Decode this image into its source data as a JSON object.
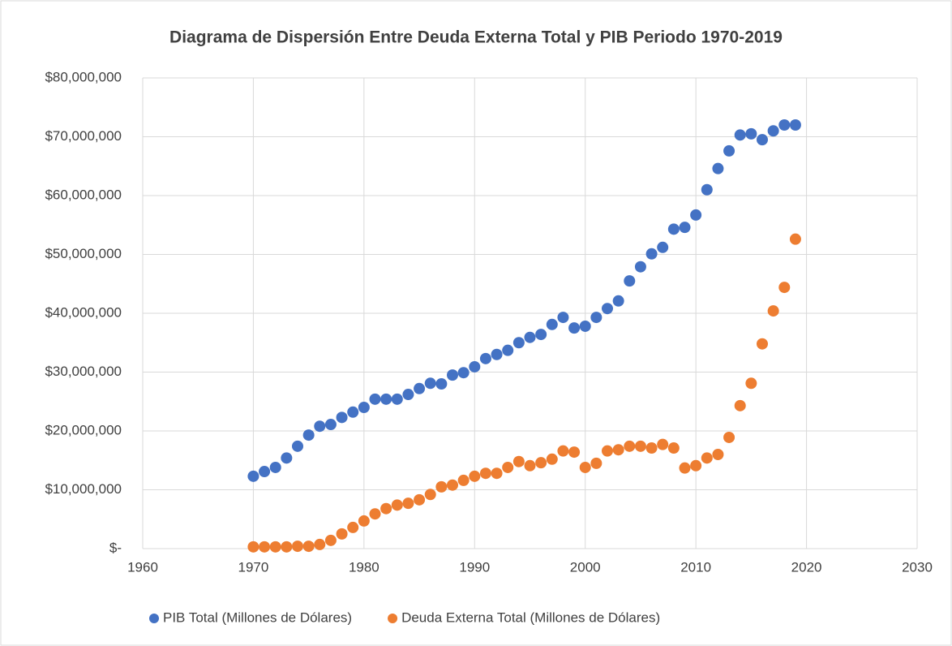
{
  "chart_data": {
    "type": "scatter",
    "title": "Diagrama de Dispersión Entre Deuda Externa Total y PIB Periodo 1970-2019",
    "x": [
      1970,
      1971,
      1972,
      1973,
      1974,
      1975,
      1976,
      1977,
      1978,
      1979,
      1980,
      1981,
      1982,
      1983,
      1984,
      1985,
      1986,
      1987,
      1988,
      1989,
      1990,
      1991,
      1992,
      1993,
      1994,
      1995,
      1996,
      1997,
      1998,
      1999,
      2000,
      2001,
      2002,
      2003,
      2004,
      2005,
      2006,
      2007,
      2008,
      2009,
      2010,
      2011,
      2012,
      2013,
      2014,
      2015,
      2016,
      2017,
      2018,
      2019
    ],
    "series": [
      {
        "name": "PIB Total (Millones de Dólares)",
        "color": "#4472c4",
        "values": [
          12300000,
          13100000,
          13800000,
          15400000,
          17400000,
          19300000,
          20800000,
          21100000,
          22300000,
          23200000,
          24000000,
          25400000,
          25400000,
          25400000,
          26200000,
          27200000,
          28100000,
          28000000,
          29500000,
          29900000,
          30900000,
          32300000,
          33000000,
          33700000,
          35000000,
          35900000,
          36400000,
          38100000,
          39300000,
          37500000,
          37800000,
          39300000,
          40800000,
          42100000,
          45500000,
          47900000,
          50100000,
          51200000,
          54300000,
          54600000,
          56700000,
          61000000,
          64600000,
          67600000,
          70300000,
          70500000,
          69500000,
          71000000,
          72000000,
          72000000
        ]
      },
      {
        "name": "Deuda Externa Total (Millones de Dólares)",
        "color": "#ed7d31",
        "values": [
          300000,
          300000,
          300000,
          300000,
          400000,
          400000,
          700000,
          1400000,
          2500000,
          3600000,
          4700000,
          5900000,
          6800000,
          7400000,
          7700000,
          8300000,
          9200000,
          10500000,
          10800000,
          11600000,
          12300000,
          12800000,
          12800000,
          13800000,
          14800000,
          14100000,
          14600000,
          15200000,
          16600000,
          16400000,
          13800000,
          14500000,
          16600000,
          16800000,
          17400000,
          17400000,
          17100000,
          17700000,
          17100000,
          13700000,
          14100000,
          15400000,
          16000000,
          18900000,
          24300000,
          28100000,
          34800000,
          40400000,
          44400000,
          52600000
        ]
      }
    ],
    "xlim": [
      1960,
      2030
    ],
    "xticks": [
      1960,
      1970,
      1980,
      1990,
      2000,
      2010,
      2020,
      2030
    ],
    "ylim": [
      0,
      80000000
    ],
    "yticks": [
      {
        "value": 0,
        "label": "$-"
      },
      {
        "value": 10000000,
        "label": "$10,000,000"
      },
      {
        "value": 20000000,
        "label": "$20,000,000"
      },
      {
        "value": 30000000,
        "label": "$30,000,000"
      },
      {
        "value": 40000000,
        "label": "$40,000,000"
      },
      {
        "value": 50000000,
        "label": "$50,000,000"
      },
      {
        "value": 60000000,
        "label": "$60,000,000"
      },
      {
        "value": 70000000,
        "label": "$70,000,000"
      },
      {
        "value": 80000000,
        "label": "$80,000,000"
      }
    ],
    "grid": true,
    "legend": "bottom"
  }
}
